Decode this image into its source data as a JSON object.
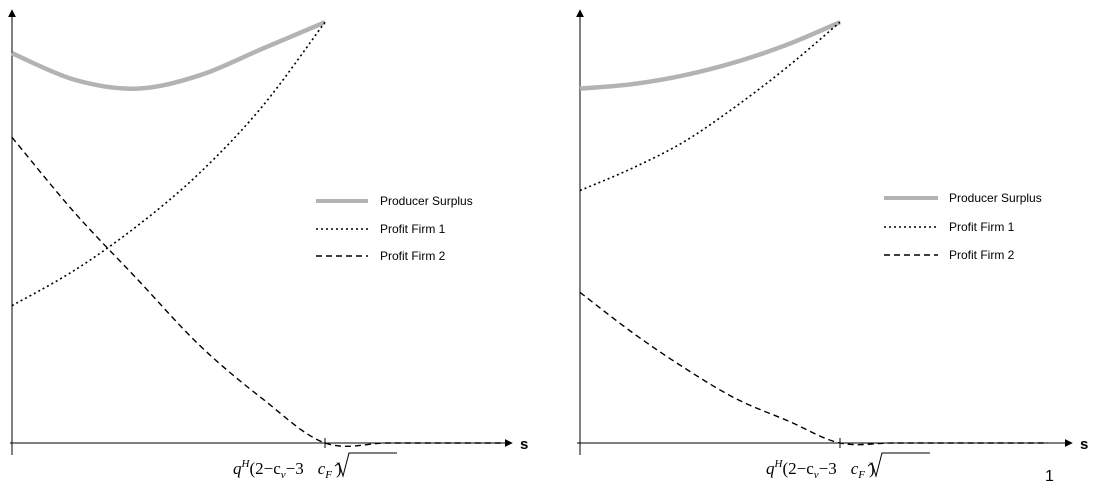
{
  "colors": {
    "producer_surplus": "#b3b3b3",
    "profit": "#000000",
    "axis": "#000000"
  },
  "page_number": "1",
  "chart_data": [
    {
      "type": "line",
      "title": "",
      "xlabel": "s",
      "ylabel": "",
      "x_tick": {
        "value": 1,
        "label": "q",
        "label_sup": "H",
        "label_formula": "(2−c",
        "label_sub_v": "v",
        "label_minus3": "−3",
        "label_cF": "c",
        "label_sub_F": "F",
        "label_close": ")"
      },
      "xlim": [
        0,
        1.6
      ],
      "ylim": [
        0,
        1.0
      ],
      "grid": false,
      "legend": {
        "placement": "right",
        "entries": [
          "Producer Surplus",
          "Profit Firm 1",
          "Profit Firm 2"
        ]
      },
      "series": [
        {
          "name": "Producer Surplus",
          "style": "solid-thick-gray",
          "x": [
            0,
            0.2,
            0.4,
            0.6,
            0.8,
            1.0
          ],
          "y": [
            0.88,
            0.82,
            0.8,
            0.83,
            0.89,
            0.95
          ]
        },
        {
          "name": "Profit Firm 1",
          "style": "dotted",
          "x": [
            0,
            0.2,
            0.4,
            0.6,
            0.8,
            1.0
          ],
          "y": [
            0.31,
            0.39,
            0.49,
            0.61,
            0.76,
            0.95
          ]
        },
        {
          "name": "Profit Firm 2",
          "style": "dashed",
          "x": [
            0,
            0.2,
            0.4,
            0.6,
            0.8,
            1.0,
            1.2,
            1.4,
            1.6
          ],
          "y": [
            0.69,
            0.52,
            0.37,
            0.22,
            0.1,
            0.0,
            0.0,
            0.0,
            0.0
          ]
        }
      ]
    },
    {
      "type": "line",
      "title": "",
      "xlabel": "s",
      "ylabel": "",
      "x_tick": {
        "value": 1,
        "label": "q",
        "label_sup": "H",
        "label_formula": "(2−c",
        "label_sub_v": "v",
        "label_minus3": "−3",
        "label_cF": "c",
        "label_sub_F": "F",
        "label_close": ")"
      },
      "xlim": [
        0,
        1.8
      ],
      "ylim": [
        0,
        1.0
      ],
      "grid": false,
      "legend": {
        "placement": "right",
        "entries": [
          "Producer Surplus",
          "Profit Firm 1",
          "Profit Firm 2"
        ]
      },
      "series": [
        {
          "name": "Producer Surplus",
          "style": "solid-thick-gray",
          "x": [
            0,
            0.2,
            0.4,
            0.6,
            0.8,
            1.0
          ],
          "y": [
            0.8,
            0.81,
            0.83,
            0.86,
            0.9,
            0.95
          ]
        },
        {
          "name": "Profit Firm 1",
          "style": "dotted",
          "x": [
            0,
            0.2,
            0.4,
            0.6,
            0.8,
            1.0
          ],
          "y": [
            0.57,
            0.62,
            0.68,
            0.76,
            0.85,
            0.95
          ]
        },
        {
          "name": "Profit Firm 2",
          "style": "dashed",
          "x": [
            0,
            0.2,
            0.4,
            0.6,
            0.8,
            1.0,
            1.2,
            1.4,
            1.6,
            1.8
          ],
          "y": [
            0.34,
            0.25,
            0.17,
            0.1,
            0.05,
            0.0,
            0.0,
            0.0,
            0.0,
            0.0
          ]
        }
      ]
    }
  ]
}
